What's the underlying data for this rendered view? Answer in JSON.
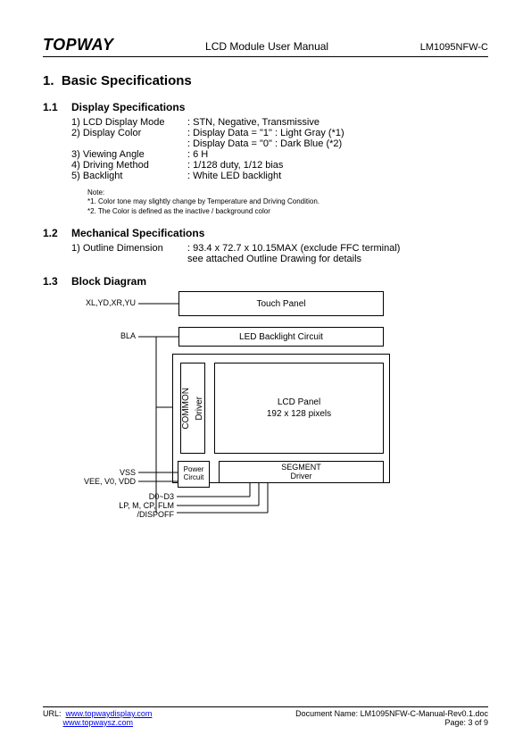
{
  "header": {
    "logo": "TOPWAY",
    "title": "LCD Module User Manual",
    "code": "LM1095NFW-C"
  },
  "section": {
    "num": "1.",
    "title": "Basic Specifications"
  },
  "sub1": {
    "num": "1.1",
    "title": "Display Specifications",
    "rows": [
      {
        "label": "1) LCD Display Mode",
        "value": ": STN, Negative, Transmissive"
      },
      {
        "label": "2) Display Color",
        "value": ": Display Data = \"1\" : Light Gray (*1)"
      },
      {
        "label": "",
        "value": ": Display Data = \"0\" : Dark Blue (*2)"
      },
      {
        "label": "3) Viewing Angle",
        "value": ": 6 H"
      },
      {
        "label": "4) Driving Method",
        "value": ": 1/128 duty, 1/12 bias"
      },
      {
        "label": "5) Backlight",
        "value": ": White LED backlight"
      }
    ],
    "note_title": "Note:",
    "note1": "*1. Color tone may slightly change by Temperature and Driving Condition.",
    "note2": "*2. The Color is defined as the inactive / background color"
  },
  "sub2": {
    "num": "1.2",
    "title": "Mechanical Specifications",
    "rows": [
      {
        "label": "1) Outline Dimension",
        "value": ": 93.4 x 72.7 x 10.15MAX (exclude FFC terminal)"
      },
      {
        "label": "",
        "value": "  see attached Outline Drawing for details"
      }
    ]
  },
  "sub3": {
    "num": "1.3",
    "title": "Block Diagram"
  },
  "diagram": {
    "touch_panel": "Touch Panel",
    "led_backlight": "LED Backlight Circuit",
    "common_driver_l1": "COMMON",
    "common_driver_l2": "Driver",
    "lcd_panel_l1": "LCD Panel",
    "lcd_panel_l2": "192 x 128 pixels",
    "power_circuit_l1": "Power",
    "power_circuit_l2": "Circuit",
    "segment_driver_l1": "SEGMENT",
    "segment_driver_l2": "Driver",
    "label_xl": "XL,YD,XR,YU",
    "label_bla": "BLA",
    "label_vss": "VSS",
    "label_vee": "VEE, V0, VDD",
    "label_d0d3": "D0~D3",
    "label_lpm": "LP, M, CP, FLM",
    "label_dispoff": "/DISPOFF",
    "colors": {
      "stroke": "#000000",
      "background": "#ffffff"
    }
  },
  "footer": {
    "url_label": "URL:",
    "url1": "www.topwaydisplay.com",
    "url2": "www.topwaysz.com",
    "docname": "Document Name: LM1095NFW-C-Manual-Rev0.1.doc",
    "page": "Page: 3 of  9"
  }
}
